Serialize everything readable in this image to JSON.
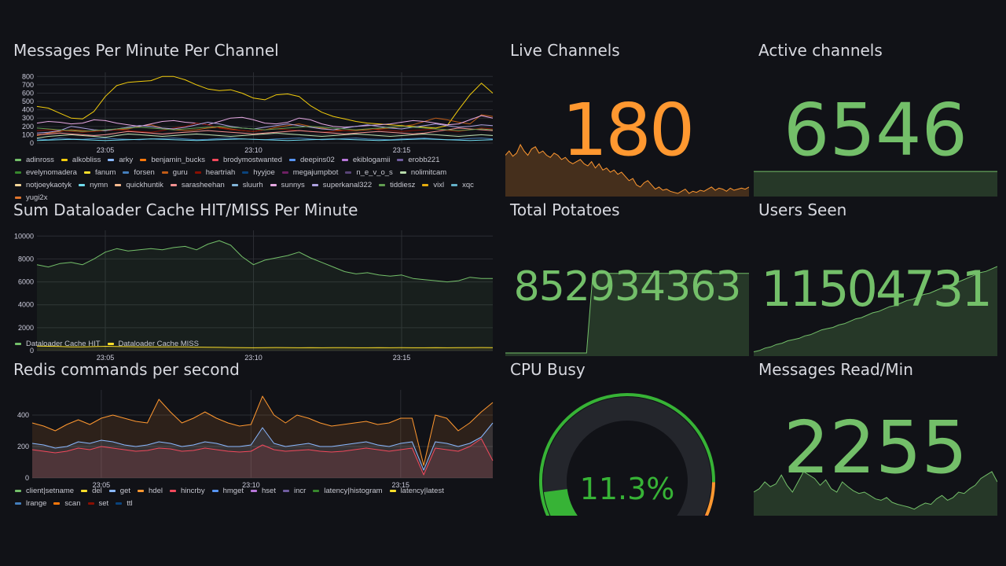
{
  "colors": {
    "green": "#73bf69",
    "orange": "#ff9830",
    "yellow": "#fade2a",
    "gauge_green": "#37b336",
    "gauge_track": "#24262c",
    "background": "#111217"
  },
  "panels": {
    "messages_per_minute": {
      "title": "Messages Per Minute Per Channel",
      "legend": [
        {
          "name": "adinross",
          "color": "#73bf69"
        },
        {
          "name": "alkobliss",
          "color": "#f2cc0c"
        },
        {
          "name": "arky",
          "color": "#8ab8ff"
        },
        {
          "name": "benjamin_bucks",
          "color": "#ff780a"
        },
        {
          "name": "brodymostwanted",
          "color": "#f2495c"
        },
        {
          "name": "deepins02",
          "color": "#5794f2"
        },
        {
          "name": "ekiblogamii",
          "color": "#b877d9"
        },
        {
          "name": "erobb221",
          "color": "#705da0"
        },
        {
          "name": "evelynomadera",
          "color": "#37872d"
        },
        {
          "name": "fanum",
          "color": "#fade2a"
        },
        {
          "name": "forsen",
          "color": "#447ebc"
        },
        {
          "name": "guru",
          "color": "#c15c17"
        },
        {
          "name": "heartriah",
          "color": "#890f02"
        },
        {
          "name": "hyyjoe",
          "color": "#0a437c"
        },
        {
          "name": "megajumpbot",
          "color": "#6d1f62"
        },
        {
          "name": "n_e_v_o_s",
          "color": "#584477"
        },
        {
          "name": "nolimitcam",
          "color": "#b7dbab"
        },
        {
          "name": "notjoeykaotyk",
          "color": "#f4d598"
        },
        {
          "name": "nymn",
          "color": "#70dbed"
        },
        {
          "name": "quickhuntik",
          "color": "#f9ba8f"
        },
        {
          "name": "sarasheehan",
          "color": "#f29191"
        },
        {
          "name": "sluurh",
          "color": "#82b5d8"
        },
        {
          "name": "sunnys",
          "color": "#e5a8e2"
        },
        {
          "name": "superkanal322",
          "color": "#aea2e0"
        },
        {
          "name": "tiddiesz",
          "color": "#629e51"
        },
        {
          "name": "vixl",
          "color": "#e5ac0e"
        },
        {
          "name": "xqc",
          "color": "#64b0c8"
        },
        {
          "name": "yugi2x",
          "color": "#e0752d"
        }
      ]
    },
    "dataloader": {
      "title": "Sum Dataloader Cache HIT/MISS Per Minute",
      "legend": [
        {
          "name": "Dataloader Cache HIT",
          "color": "#73bf69"
        },
        {
          "name": "Dataloader Cache MISS",
          "color": "#fade2a"
        }
      ]
    },
    "redis": {
      "title": "Redis commands per second",
      "legend": [
        {
          "name": "client|setname",
          "color": "#73bf69"
        },
        {
          "name": "del",
          "color": "#fade2a"
        },
        {
          "name": "get",
          "color": "#8ab8ff"
        },
        {
          "name": "hdel",
          "color": "#ff9830"
        },
        {
          "name": "hincrby",
          "color": "#f2495c"
        },
        {
          "name": "hmget",
          "color": "#5794f2"
        },
        {
          "name": "hset",
          "color": "#b877d9"
        },
        {
          "name": "incr",
          "color": "#705da0"
        },
        {
          "name": "latency|histogram",
          "color": "#37872d"
        },
        {
          "name": "latency|latest",
          "color": "#fade2a"
        },
        {
          "name": "lrange",
          "color": "#447ebc"
        },
        {
          "name": "scan",
          "color": "#ff780a"
        },
        {
          "name": "set",
          "color": "#890f02"
        },
        {
          "name": "ttl",
          "color": "#0a437c"
        }
      ]
    },
    "live_channels": {
      "title": "Live Channels",
      "value": "180"
    },
    "active_channels": {
      "title": "Active channels",
      "value": "6546"
    },
    "total_potatoes": {
      "title": "Total Potatoes",
      "value": "852934363"
    },
    "users_seen": {
      "title": "Users Seen",
      "value": "11504731"
    },
    "cpu_busy": {
      "title": "CPU Busy",
      "value": "11.3%",
      "percent": 11.3
    },
    "messages_read": {
      "title": "Messages Read/Min",
      "value": "2255"
    }
  },
  "chart_data": [
    {
      "type": "line",
      "title": "Messages Per Minute Per Channel",
      "x_ticks": [
        "23:05",
        "23:10",
        "23:15"
      ],
      "y_ticks": [
        0,
        100,
        200,
        300,
        400,
        500,
        600,
        700,
        800
      ],
      "ylim": [
        0,
        850
      ],
      "x_count": 41,
      "series": [
        {
          "name": "alkobliss",
          "values": [
            440,
            420,
            360,
            300,
            290,
            380,
            560,
            690,
            730,
            740,
            750,
            800,
            800,
            760,
            700,
            650,
            630,
            640,
            600,
            540,
            520,
            580,
            590,
            560,
            450,
            370,
            320,
            290,
            260,
            240,
            230,
            220,
            210,
            200,
            190,
            180,
            210,
            400,
            580,
            720,
            600
          ]
        },
        {
          "name": "guru",
          "values": [
            90,
            120,
            140,
            160,
            150,
            140,
            150,
            160,
            170,
            200,
            220,
            180,
            160,
            150,
            160,
            180,
            190,
            170,
            150,
            140,
            160,
            190,
            210,
            230,
            200,
            180,
            160,
            150,
            150,
            160,
            170,
            180,
            200,
            220,
            260,
            300,
            280,
            250,
            230,
            340,
            320
          ]
        },
        {
          "name": "sunnys",
          "values": [
            240,
            260,
            250,
            230,
            240,
            280,
            270,
            240,
            220,
            200,
            230,
            260,
            270,
            250,
            240,
            220,
            260,
            300,
            310,
            280,
            240,
            230,
            250,
            300,
            280,
            230,
            200,
            190,
            200,
            210,
            220,
            230,
            250,
            270,
            260,
            240,
            220,
            230,
            280,
            330,
            300
          ]
        },
        {
          "name": "heartriah",
          "values": [
            150,
            160,
            150,
            140,
            130,
            140,
            150,
            160,
            150,
            140,
            130,
            150,
            180,
            200,
            240,
            220,
            180,
            160,
            150,
            140,
            160,
            170,
            160,
            150,
            140,
            130,
            140,
            150,
            160,
            170,
            160,
            150,
            140,
            150,
            160,
            170,
            150,
            140,
            160,
            180,
            170
          ]
        },
        {
          "name": "nolimitcam",
          "values": [
            60,
            80,
            90,
            100,
            90,
            80,
            70,
            90,
            110,
            100,
            90,
            80,
            90,
            100,
            110,
            100,
            90,
            80,
            90,
            100,
            110,
            120,
            110,
            100,
            90,
            80,
            90,
            100,
            110,
            100,
            90,
            80,
            90,
            100,
            110,
            100,
            90,
            80,
            90,
            100,
            90
          ]
        },
        {
          "name": "forsen",
          "values": [
            50,
            40,
            60,
            50,
            45,
            55,
            60,
            50,
            45,
            40,
            50,
            55,
            60,
            50,
            40,
            45,
            55,
            60,
            50,
            45,
            40,
            50,
            55,
            60,
            50,
            40,
            45,
            55,
            60,
            50,
            45,
            40,
            50,
            55,
            60,
            50,
            40,
            45,
            55,
            60,
            50
          ]
        },
        {
          "name": "superkanal322",
          "values": [
            120,
            130,
            150,
            200,
            180,
            160,
            150,
            170,
            190,
            210,
            200,
            180,
            170,
            190,
            220,
            250,
            230,
            200,
            180,
            170,
            190,
            210,
            230,
            210,
            190,
            170,
            160,
            180,
            200,
            220,
            200,
            180,
            170,
            190,
            210,
            230,
            210,
            190,
            200,
            220,
            210
          ]
        },
        {
          "name": "sarasheehan",
          "values": [
            100,
            110,
            120,
            110,
            100,
            90,
            100,
            120,
            140,
            130,
            120,
            110,
            120,
            130,
            140,
            150,
            140,
            130,
            120,
            110,
            120,
            130,
            140,
            150,
            140,
            130,
            120,
            110,
            120,
            130,
            140,
            130,
            120,
            110,
            120,
            140,
            160,
            180,
            170,
            160,
            150
          ]
        },
        {
          "name": "nymn",
          "values": [
            30,
            35,
            40,
            45,
            40,
            35,
            30,
            35,
            40,
            45,
            50,
            45,
            40,
            35,
            30,
            35,
            40,
            45,
            50,
            45,
            40,
            35,
            30,
            35,
            40,
            45,
            50,
            45,
            40,
            35,
            30,
            35,
            40,
            45,
            50,
            45,
            40,
            35,
            30,
            35,
            40
          ]
        },
        {
          "name": "tiddiesz",
          "values": [
            180,
            170,
            160,
            150,
            140,
            150,
            160,
            170,
            180,
            190,
            180,
            170,
            160,
            170,
            180,
            190,
            200,
            190,
            180,
            170,
            160,
            170,
            180,
            190,
            200,
            190,
            180,
            170,
            160,
            170,
            180,
            190,
            200,
            190,
            180,
            170,
            160,
            150,
            160,
            170,
            160
          ]
        }
      ]
    },
    {
      "type": "line",
      "title": "Sum Dataloader Cache HIT/MISS Per Minute",
      "x_ticks": [
        "23:05",
        "23:10",
        "23:15"
      ],
      "y_ticks": [
        0,
        2000,
        4000,
        6000,
        8000,
        10000
      ],
      "ylim": [
        0,
        10500
      ],
      "x_count": 41,
      "series": [
        {
          "name": "Dataloader Cache HIT",
          "values": [
            7500,
            7300,
            7600,
            7700,
            7500,
            8000,
            8600,
            8900,
            8700,
            8800,
            8900,
            8800,
            9000,
            9100,
            8800,
            9300,
            9600,
            9200,
            8200,
            7500,
            7900,
            8100,
            8300,
            8600,
            8100,
            7700,
            7300,
            6900,
            6700,
            6800,
            6600,
            6500,
            6600,
            6300,
            6200,
            6100,
            6000,
            6100,
            6400,
            6300,
            6300
          ]
        },
        {
          "name": "Dataloader Cache MISS",
          "values": [
            400,
            380,
            360,
            330,
            320,
            350,
            380,
            360,
            340,
            330,
            330,
            320,
            330,
            330,
            300,
            290,
            280,
            270,
            260,
            250,
            260,
            270,
            260,
            250,
            260,
            250,
            260,
            260,
            250,
            250,
            260,
            250,
            260,
            250,
            250,
            260,
            250,
            260,
            260,
            270,
            260
          ]
        }
      ]
    },
    {
      "type": "area",
      "title": "Redis commands per second",
      "x_ticks": [
        "23:05",
        "23:10",
        "23:15"
      ],
      "y_ticks": [
        0,
        200,
        400
      ],
      "ylim": [
        0,
        560
      ],
      "x_count": 41,
      "series": [
        {
          "name": "hdel",
          "values": [
            350,
            330,
            300,
            340,
            370,
            340,
            380,
            400,
            380,
            360,
            350,
            500,
            420,
            350,
            380,
            420,
            380,
            350,
            330,
            340,
            520,
            400,
            350,
            400,
            380,
            350,
            330,
            340,
            350,
            360,
            340,
            350,
            380,
            380,
            80,
            400,
            380,
            300,
            350,
            420,
            480
          ]
        },
        {
          "name": "get",
          "values": [
            220,
            210,
            190,
            200,
            230,
            220,
            240,
            230,
            210,
            200,
            210,
            230,
            220,
            200,
            210,
            230,
            220,
            200,
            200,
            210,
            320,
            220,
            200,
            210,
            220,
            200,
            200,
            210,
            220,
            230,
            210,
            200,
            220,
            230,
            50,
            230,
            220,
            200,
            220,
            260,
            350
          ]
        },
        {
          "name": "hincrby",
          "values": [
            180,
            170,
            160,
            170,
            190,
            180,
            200,
            190,
            180,
            170,
            175,
            190,
            185,
            170,
            175,
            190,
            180,
            170,
            165,
            170,
            210,
            180,
            170,
            175,
            180,
            170,
            165,
            170,
            180,
            190,
            180,
            170,
            180,
            190,
            20,
            190,
            180,
            170,
            200,
            250,
            110
          ]
        }
      ]
    }
  ],
  "sparklines": {
    "live_channels": [
      180,
      200,
      175,
      190,
      230,
      200,
      180,
      210,
      220,
      190,
      200,
      180,
      170,
      190,
      180,
      160,
      170,
      150,
      140,
      150,
      160,
      140,
      130,
      150,
      120,
      140,
      110,
      120,
      100,
      110,
      90,
      100,
      80,
      60,
      70,
      40,
      30,
      50,
      60,
      40,
      20,
      30,
      15,
      20,
      10,
      5,
      0,
      10,
      20,
      0,
      10,
      5,
      15,
      10,
      20,
      30,
      15,
      25,
      20,
      10,
      25,
      15,
      20,
      25,
      20,
      30
    ],
    "active_channels": [
      1,
      1,
      1,
      1,
      1,
      1,
      1,
      1,
      1,
      1,
      1,
      1,
      1,
      1,
      1,
      1,
      1,
      1,
      1,
      1,
      1,
      1,
      1,
      1,
      1,
      1,
      1,
      1,
      1,
      1
    ],
    "total_potatoes": [
      0,
      0,
      0,
      0,
      0,
      0,
      0,
      0,
      0,
      0,
      0,
      0,
      0,
      0,
      1,
      1,
      1,
      1,
      1,
      1,
      1,
      1,
      1,
      1,
      1,
      1,
      1,
      1,
      1,
      1,
      1,
      1,
      1,
      1,
      1,
      1,
      1,
      1,
      1,
      1
    ],
    "users_seen": [
      1,
      2,
      4,
      5,
      7,
      8,
      10,
      11,
      12,
      14,
      15,
      17,
      19,
      20,
      21,
      23,
      24,
      26,
      28,
      29,
      31,
      33,
      34,
      36,
      38,
      39,
      41,
      43,
      44,
      46,
      48,
      49,
      51,
      53,
      55,
      56,
      58,
      60,
      62,
      64,
      66,
      67,
      69,
      71
    ],
    "messages_read": [
      30,
      35,
      45,
      38,
      42,
      55,
      40,
      30,
      45,
      60,
      55,
      50,
      40,
      48,
      35,
      30,
      45,
      38,
      32,
      28,
      30,
      25,
      20,
      18,
      22,
      15,
      12,
      10,
      8,
      5,
      10,
      14,
      12,
      20,
      25,
      18,
      22,
      30,
      28,
      35,
      40,
      50,
      55,
      60,
      45
    ]
  }
}
